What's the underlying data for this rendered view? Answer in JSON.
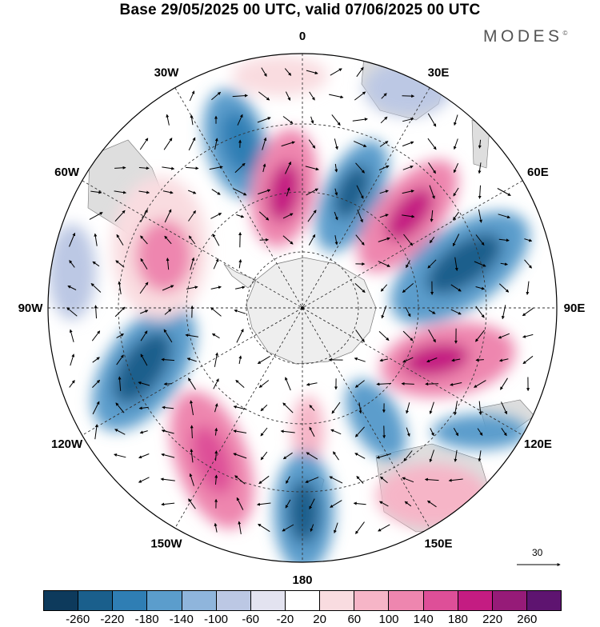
{
  "title": "Base 29/05/2025 00 UTC, valid 07/06/2025 00 UTC",
  "brand": "MODES",
  "brand_mark": "©",
  "longitude_labels": [
    {
      "text": "0",
      "lon": 0
    },
    {
      "text": "30E",
      "lon": 30
    },
    {
      "text": "60E",
      "lon": 60
    },
    {
      "text": "90E",
      "lon": 90
    },
    {
      "text": "120E",
      "lon": 120
    },
    {
      "text": "150E",
      "lon": 150
    },
    {
      "text": "180",
      "lon": 180
    },
    {
      "text": "150W",
      "lon": 210
    },
    {
      "text": "120W",
      "lon": 240
    },
    {
      "text": "90W",
      "lon": 270
    },
    {
      "text": "60W",
      "lon": 300
    },
    {
      "text": "30W",
      "lon": 330
    }
  ],
  "vector_reference": {
    "label": "30"
  },
  "colorbar": {
    "colors": [
      "#0d3a5c",
      "#1a5f8c",
      "#2f7eb4",
      "#5b9dcc",
      "#8fb5dc",
      "#bcc8e4",
      "#e3e3f0",
      "#ffffff",
      "#f9dce0",
      "#f6b5c7",
      "#ee86af",
      "#de4f98",
      "#c41c82",
      "#961b78",
      "#5e1470"
    ],
    "labels": [
      "-260",
      "-220",
      "-180",
      "-140",
      "-100",
      "-60",
      "-20",
      "20",
      "60",
      "100",
      "140",
      "180",
      "220",
      "260"
    ]
  },
  "colors": {
    "land": "#dcdcdc",
    "antarctica": "#eeeeee",
    "arrow": "#000000"
  }
}
